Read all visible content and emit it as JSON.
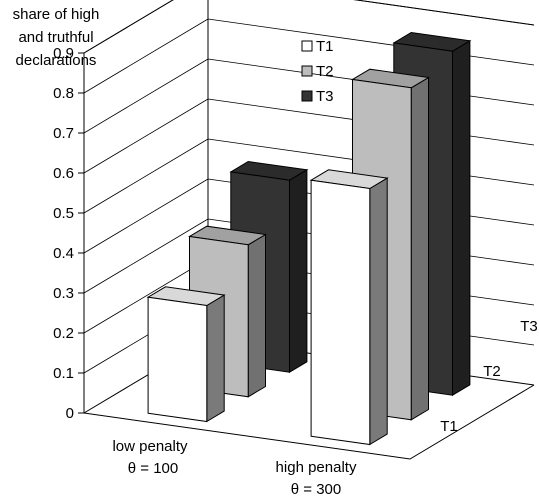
{
  "chart_data": {
    "type": "bar",
    "title": "",
    "ylabel": [
      "share of high",
      "and truthful",
      "declarations"
    ],
    "ylim": [
      0,
      0.9
    ],
    "yticks": [
      "0",
      "0.1",
      "0.2",
      "0.3",
      "0.4",
      "0.5",
      "0.6",
      "0.7",
      "0.8",
      "0.9"
    ],
    "categories": [
      {
        "line1": "low penalty",
        "line2": "θ = 100"
      },
      {
        "line1": "high penalty",
        "line2": "θ = 300"
      }
    ],
    "depth_labels": [
      "T1",
      "T2",
      "T3"
    ],
    "legend_position": "top-center",
    "series": [
      {
        "name": "T1",
        "color": "#ffffff",
        "values": [
          0.29,
          0.64
        ]
      },
      {
        "name": "T2",
        "color": "#bdbdbd",
        "values": [
          0.38,
          0.83
        ]
      },
      {
        "name": "T3",
        "color": "#333333",
        "values": [
          0.48,
          0.86
        ]
      }
    ]
  }
}
